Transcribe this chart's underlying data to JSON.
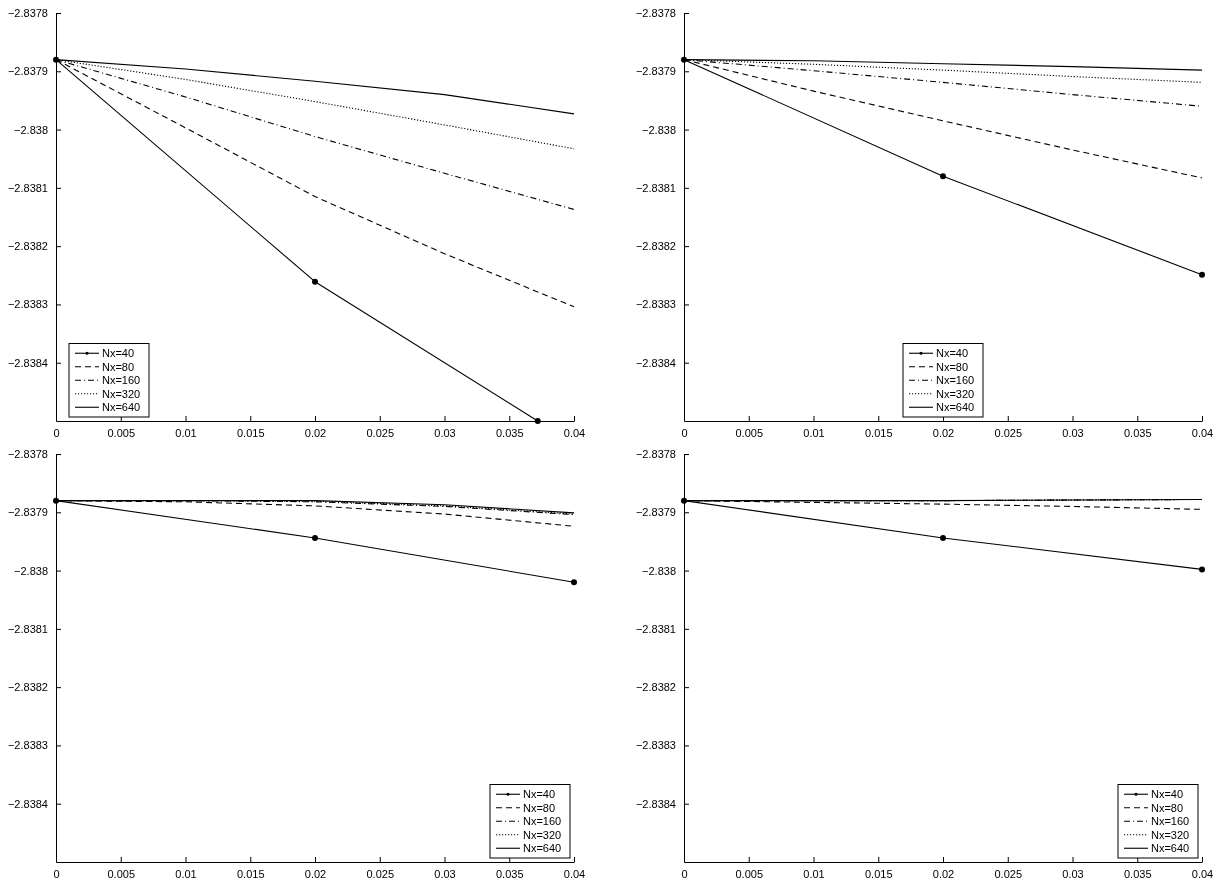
{
  "chart_data": [
    {
      "type": "line",
      "x": [
        0,
        0.01,
        0.02,
        0.03,
        0.04
      ],
      "xlim": [
        0,
        0.04
      ],
      "xticks": [
        0,
        0.005,
        0.01,
        0.015,
        0.02,
        0.025,
        0.03,
        0.035,
        0.04
      ],
      "ylim": [
        -2.8385,
        -2.8378
      ],
      "yticks": [
        -2.8378,
        -2.8379,
        -2.838,
        -2.8381,
        -2.8382,
        -2.8383,
        -2.8384
      ],
      "legend": "bottom left",
      "series": [
        {
          "name": "Nx=40",
          "color": "#000000",
          "line_style": "solid",
          "marker": "circle",
          "x": [
            0,
            0.02,
            0.0372
          ],
          "values": [
            -2.83788,
            -2.838261,
            -2.8385
          ]
        },
        {
          "name": "Nx=80",
          "color": "#000000",
          "line_style": "dashed",
          "values": [
            -2.83788,
            -2.837997,
            -2.838115,
            -2.838213,
            -2.838304
          ]
        },
        {
          "name": "Nx=160",
          "color": "#000000",
          "line_style": "dashdot",
          "values": [
            -2.83788,
            -2.837944,
            -2.838012,
            -2.838075,
            -2.838137
          ]
        },
        {
          "name": "Nx=320",
          "color": "#000000",
          "line_style": "dotted",
          "values": [
            -2.83788,
            -2.837914,
            -2.837952,
            -2.837992,
            -2.838033
          ]
        },
        {
          "name": "Nx=640",
          "color": "#000000",
          "line_style": "solid",
          "values": [
            -2.83788,
            -2.837896,
            -2.837917,
            -2.83794,
            -2.837973
          ]
        }
      ]
    },
    {
      "type": "line",
      "x": [
        0,
        0.01,
        0.02,
        0.03,
        0.04
      ],
      "xlim": [
        0,
        0.04
      ],
      "xticks": [
        0,
        0.005,
        0.01,
        0.015,
        0.02,
        0.025,
        0.03,
        0.035,
        0.04
      ],
      "ylim": [
        -2.8385,
        -2.8378
      ],
      "yticks": [
        -2.8378,
        -2.8379,
        -2.838,
        -2.8381,
        -2.8382,
        -2.8383,
        -2.8384
      ],
      "legend": "bottom",
      "series": [
        {
          "name": "Nx=40",
          "color": "#000000",
          "line_style": "solid",
          "marker": "circle",
          "x": [
            0,
            0.02,
            0.04
          ],
          "values": [
            -2.83788,
            -2.83808,
            -2.838249
          ]
        },
        {
          "name": "Nx=80",
          "color": "#000000",
          "line_style": "dashed",
          "values": [
            -2.83788,
            -2.837934,
            -2.837985,
            -2.838035,
            -2.838083
          ]
        },
        {
          "name": "Nx=160",
          "color": "#000000",
          "line_style": "dashdot",
          "values": [
            -2.83788,
            -2.837899,
            -2.837919,
            -2.83794,
            -2.83796
          ]
        },
        {
          "name": "Nx=320",
          "color": "#000000",
          "line_style": "dotted",
          "values": [
            -2.83788,
            -2.837888,
            -2.837898,
            -2.837909,
            -2.837919
          ]
        },
        {
          "name": "Nx=640",
          "color": "#000000",
          "line_style": "solid",
          "values": [
            -2.83788,
            -2.837882,
            -2.837887,
            -2.837892,
            -2.837898
          ]
        }
      ]
    },
    {
      "type": "line",
      "x": [
        0,
        0.01,
        0.02,
        0.03,
        0.04
      ],
      "xlim": [
        0,
        0.04
      ],
      "xticks": [
        0,
        0.005,
        0.01,
        0.015,
        0.02,
        0.025,
        0.03,
        0.035,
        0.04
      ],
      "ylim": [
        -2.8385,
        -2.8378
      ],
      "yticks": [
        -2.8378,
        -2.8379,
        -2.838,
        -2.8381,
        -2.8382,
        -2.8383,
        -2.8384
      ],
      "legend": "bottom right",
      "series": [
        {
          "name": "Nx=40",
          "color": "#000000",
          "line_style": "solid",
          "marker": "circle",
          "x": [
            0,
            0.02,
            0.04
          ],
          "values": [
            -2.83788,
            -2.837944,
            -2.83802
          ]
        },
        {
          "name": "Nx=80",
          "color": "#000000",
          "line_style": "dashed",
          "values": [
            -2.83788,
            -2.837882,
            -2.837889,
            -2.837903,
            -2.837924
          ]
        },
        {
          "name": "Nx=160",
          "color": "#000000",
          "line_style": "dashdot",
          "values": [
            -2.83788,
            -2.83788,
            -2.837882,
            -2.83789,
            -2.837904
          ]
        },
        {
          "name": "Nx=320",
          "color": "#000000",
          "line_style": "dotted",
          "values": [
            -2.83788,
            -2.83788,
            -2.837881,
            -2.837889,
            -2.837903
          ]
        },
        {
          "name": "Nx=640",
          "color": "#000000",
          "line_style": "solid",
          "values": [
            -2.83788,
            -2.83788,
            -2.83788,
            -2.837887,
            -2.837901
          ]
        }
      ]
    },
    {
      "type": "line",
      "x": [
        0,
        0.01,
        0.02,
        0.03,
        0.04
      ],
      "xlim": [
        0,
        0.04
      ],
      "xticks": [
        0,
        0.005,
        0.01,
        0.015,
        0.02,
        0.025,
        0.03,
        0.035,
        0.04
      ],
      "ylim": [
        -2.8385,
        -2.8378
      ],
      "yticks": [
        -2.8378,
        -2.8379,
        -2.838,
        -2.8381,
        -2.8382,
        -2.8383,
        -2.8384
      ],
      "legend": "bottom right",
      "series": [
        {
          "name": "Nx=40",
          "color": "#000000",
          "line_style": "solid",
          "marker": "circle",
          "x": [
            0,
            0.02,
            0.04
          ],
          "values": [
            -2.83788,
            -2.837944,
            -2.837998
          ]
        },
        {
          "name": "Nx=80",
          "color": "#000000",
          "line_style": "dashed",
          "values": [
            -2.83788,
            -2.837883,
            -2.837886,
            -2.83789,
            -2.837895
          ]
        },
        {
          "name": "Nx=160",
          "color": "#000000",
          "line_style": "dashdot",
          "values": [
            -2.83788,
            -2.83788,
            -2.83788,
            -2.837879,
            -2.837878
          ]
        },
        {
          "name": "Nx=320",
          "color": "#000000",
          "line_style": "dotted",
          "values": [
            -2.83788,
            -2.83788,
            -2.83788,
            -2.837879,
            -2.837878
          ]
        },
        {
          "name": "Nx=640",
          "color": "#000000",
          "line_style": "solid",
          "values": [
            -2.83788,
            -2.83788,
            -2.83788,
            -2.837879,
            -2.837878
          ]
        }
      ]
    }
  ]
}
